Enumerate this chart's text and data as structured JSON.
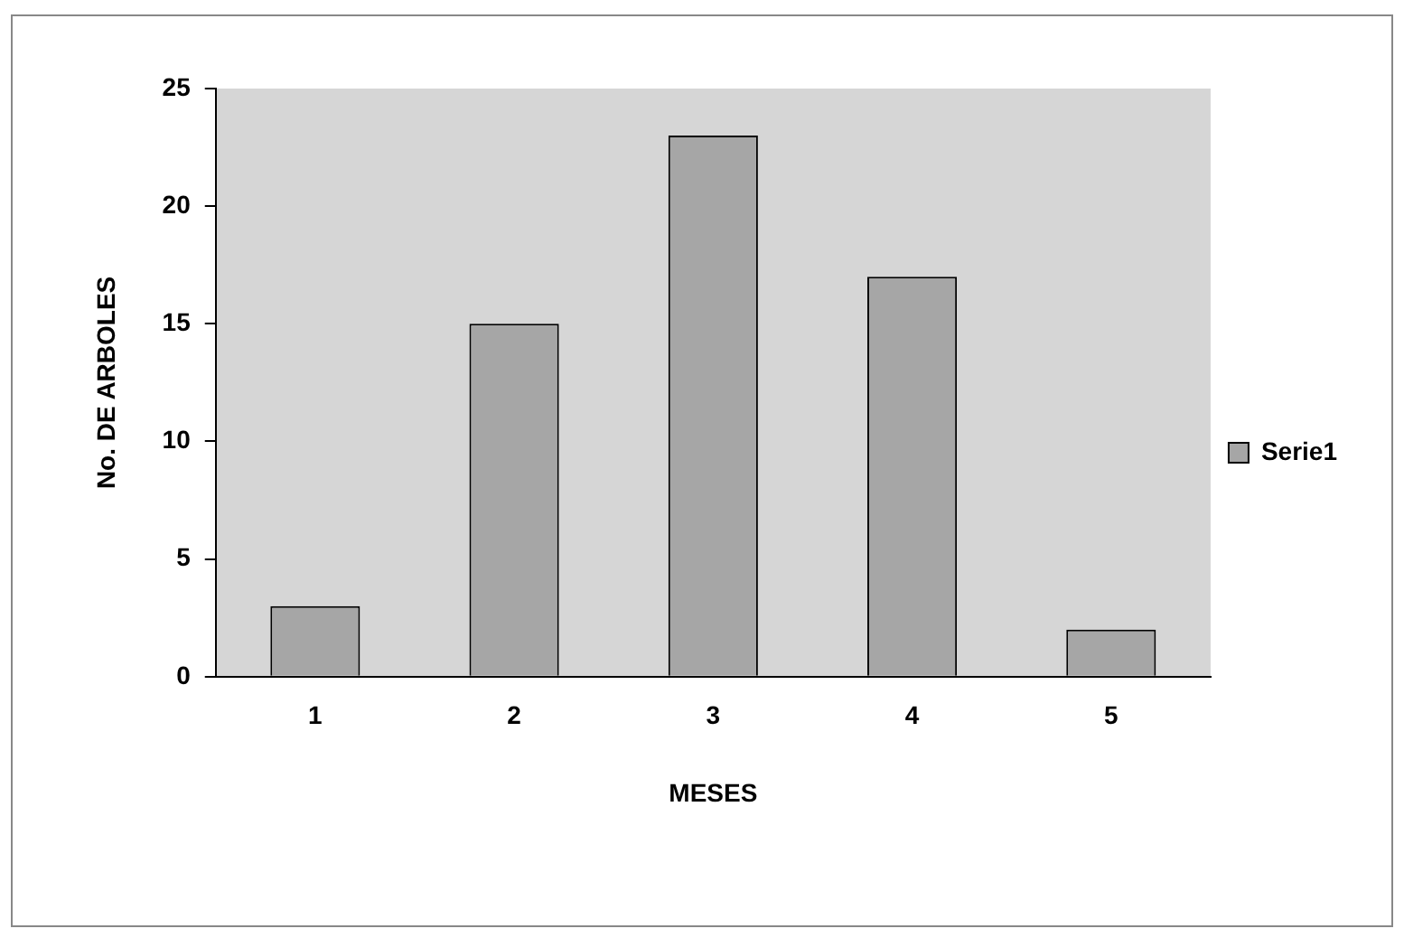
{
  "chart_data": {
    "type": "bar",
    "xlabel": "MESES",
    "ylabel": "No. DE ARBOLES",
    "categories": [
      "1",
      "2",
      "3",
      "4",
      "5"
    ],
    "series": [
      {
        "name": "Serie1",
        "color": "#a6a6a6",
        "values": [
          3,
          15,
          23,
          17,
          2
        ]
      }
    ],
    "ylim": [
      0,
      25
    ],
    "yticks": [
      0,
      5,
      10,
      15,
      20,
      25
    ],
    "grid": false,
    "legend": "right"
  }
}
